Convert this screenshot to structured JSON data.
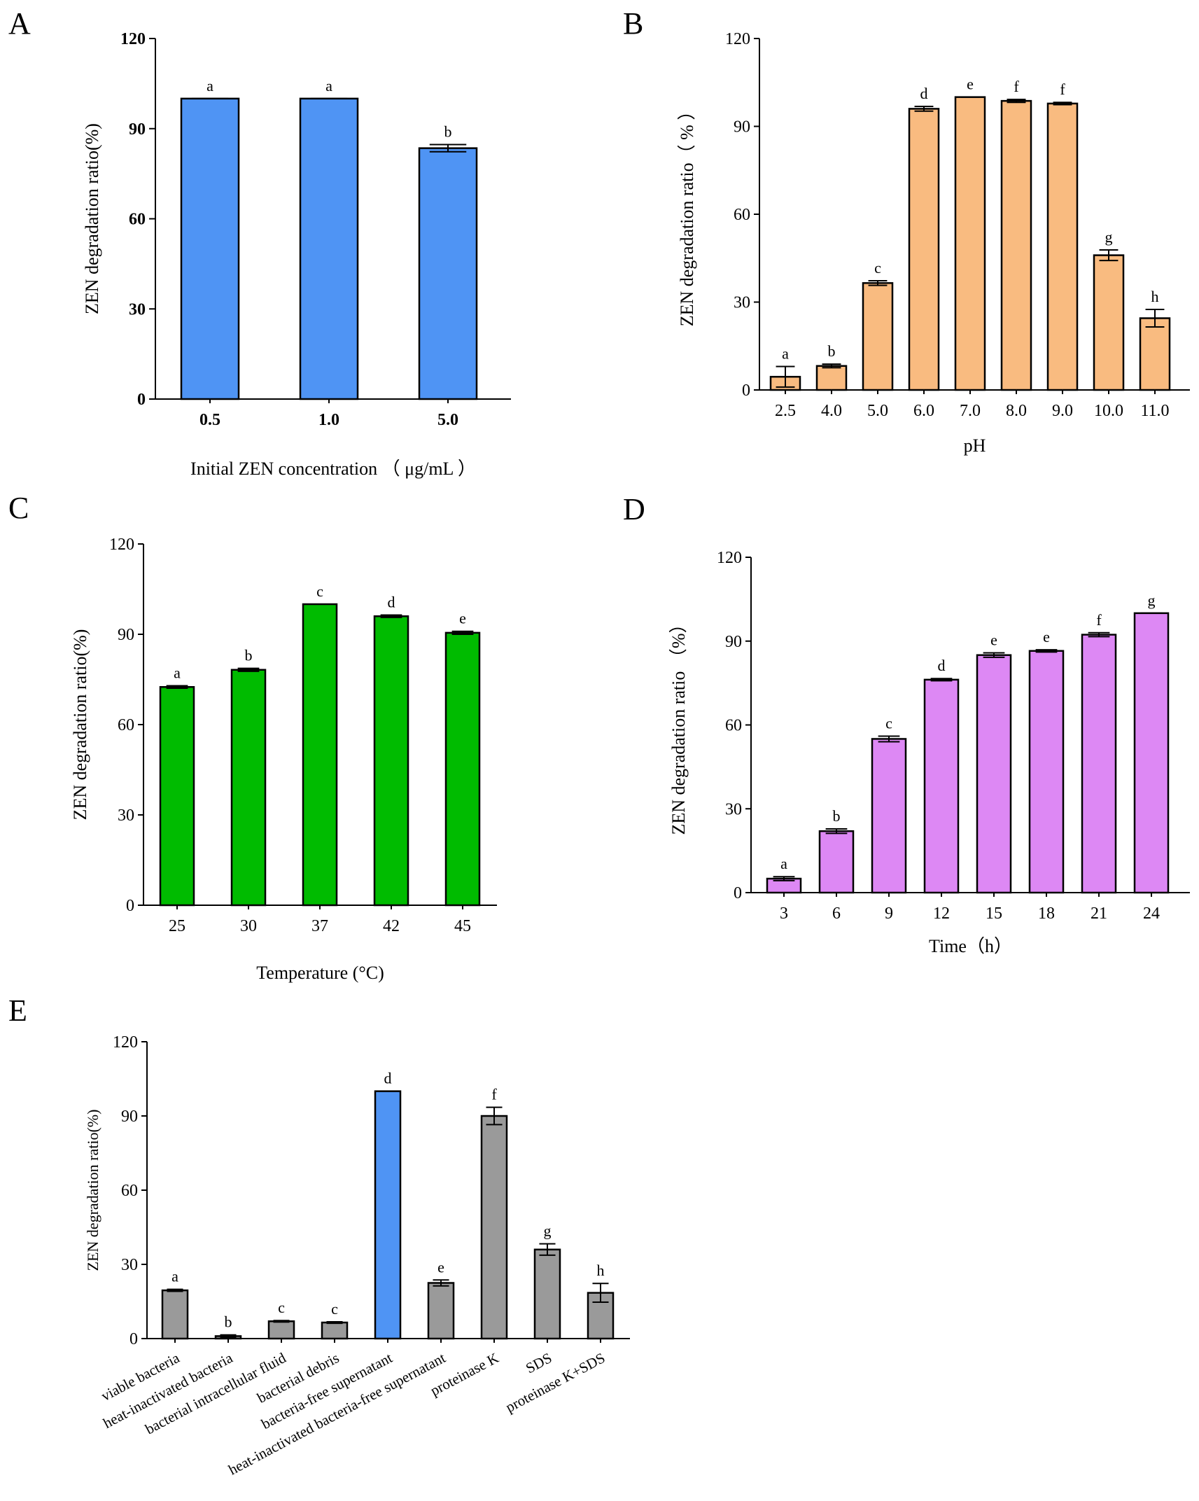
{
  "chart_data": [
    {
      "id": "A",
      "panel_label": "A",
      "type": "bar",
      "ylabel": "ZEN degradation ratio(%)",
      "xlabel": "Initial ZEN concentration  （ μg/mL ）",
      "ylim": [
        0,
        120
      ],
      "yticks": [
        "0",
        "30",
        "60",
        "90",
        "120"
      ],
      "tick_bold": true,
      "bar_color": "#4f94f4",
      "categories": [
        "0.5",
        "1.0",
        "5.0"
      ],
      "values": [
        100,
        100,
        83.5
      ],
      "errors": [
        0,
        0,
        1.2
      ],
      "sig_letters": [
        "a",
        "a",
        "b"
      ]
    },
    {
      "id": "B",
      "panel_label": "B",
      "type": "bar",
      "ylabel": "ZEN degradation ratio（ % ）",
      "xlabel": "pH",
      "ylim": [
        0,
        120
      ],
      "yticks": [
        "0",
        "30",
        "60",
        "90",
        "120"
      ],
      "tick_bold": false,
      "bar_color": "#f9bb80",
      "categories": [
        "2.5",
        "4.0",
        "5.0",
        "6.0",
        "7.0",
        "8.0",
        "9.0",
        "10.0",
        "11.0"
      ],
      "values": [
        4.5,
        8.2,
        36.5,
        96,
        100,
        98.7,
        97.8,
        46,
        24.5
      ],
      "errors": [
        3.5,
        0.6,
        0.8,
        0.8,
        0,
        0.5,
        0.4,
        1.8,
        3
      ],
      "sig_letters": [
        "a",
        "b",
        "c",
        "d",
        "e",
        "f",
        "f",
        "g",
        "h"
      ]
    },
    {
      "id": "C",
      "panel_label": "C",
      "type": "bar",
      "ylabel": "ZEN degradation ratio(%)",
      "xlabel": "Temperature (°C)",
      "ylim": [
        0,
        120
      ],
      "yticks": [
        "0",
        "30",
        "60",
        "90",
        "120"
      ],
      "tick_bold": false,
      "bar_color": "#00bb00",
      "categories": [
        "25",
        "30",
        "37",
        "42",
        "45"
      ],
      "values": [
        72.5,
        78.2,
        100,
        96,
        90.5
      ],
      "errors": [
        0.4,
        0.5,
        0,
        0.4,
        0.5
      ],
      "sig_letters": [
        "a",
        "b",
        "c",
        "d",
        "e"
      ]
    },
    {
      "id": "D",
      "panel_label": "D",
      "type": "bar",
      "ylabel": "ZEN degradation ratio    （%）",
      "xlabel": "Time（h）",
      "ylim": [
        0,
        120
      ],
      "yticks": [
        "0",
        "30",
        "60",
        "90",
        "120"
      ],
      "tick_bold": false,
      "bar_color": "#dd88f4",
      "categories": [
        "3",
        "6",
        "9",
        "12",
        "15",
        "18",
        "21",
        "24"
      ],
      "values": [
        5,
        22,
        55,
        76.2,
        85,
        86.5,
        92.3,
        100
      ],
      "errors": [
        0.7,
        0.8,
        1.0,
        0.4,
        0.8,
        0.4,
        0.7,
        0
      ],
      "sig_letters": [
        "a",
        "b",
        "c",
        "d",
        "e",
        "e",
        "f",
        "g"
      ]
    },
    {
      "id": "E",
      "panel_label": "E",
      "type": "bar",
      "ylabel": "ZEN degradation ratio(%)",
      "xlabel": "",
      "ylim": [
        0,
        120
      ],
      "yticks": [
        "0",
        "30",
        "60",
        "90",
        "120"
      ],
      "tick_bold": false,
      "bar_color": "#9a9a9a",
      "highlight_color": "#4f94f4",
      "highlight_index": 4,
      "categories": [
        "viable bacteria",
        "heat-inactivated bacteria",
        "bacterial intracellular fluid",
        "bacterial debris",
        "bacteria-free supernatant",
        "heat-inactivated bacteria-free supernatant",
        "proteinase K",
        "SDS",
        "proteinase K+SDS"
      ],
      "values": [
        19.5,
        1,
        7,
        6.5,
        100,
        22.5,
        90,
        36,
        18.5
      ],
      "errors": [
        0.4,
        0.5,
        0.3,
        0.3,
        0,
        1.2,
        3.5,
        2.3,
        3.8
      ],
      "sig_letters": [
        "a",
        "b",
        "c",
        "c",
        "d",
        "e",
        "f",
        "g",
        "h"
      ]
    }
  ]
}
